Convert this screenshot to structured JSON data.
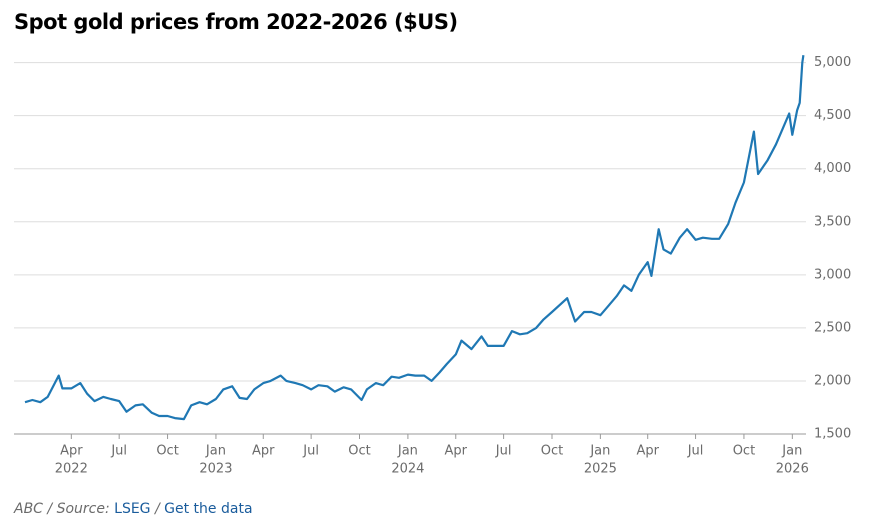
{
  "chart_data": {
    "type": "line",
    "title": "Spot gold prices from 2022-2026 ($US)",
    "x": [
      "2022-01-03",
      "2022-01-17",
      "2022-02-01",
      "2022-02-15",
      "2022-03-08",
      "2022-03-15",
      "2022-04-01",
      "2022-04-18",
      "2022-05-01",
      "2022-05-15",
      "2022-06-01",
      "2022-06-15",
      "2022-07-01",
      "2022-07-15",
      "2022-08-01",
      "2022-08-15",
      "2022-09-01",
      "2022-09-15",
      "2022-10-01",
      "2022-10-15",
      "2022-11-01",
      "2022-11-15",
      "2022-12-01",
      "2022-12-15",
      "2023-01-01",
      "2023-01-15",
      "2023-02-01",
      "2023-02-15",
      "2023-03-01",
      "2023-03-15",
      "2023-04-01",
      "2023-04-15",
      "2023-05-04",
      "2023-05-15",
      "2023-06-01",
      "2023-06-15",
      "2023-07-01",
      "2023-07-15",
      "2023-08-01",
      "2023-08-15",
      "2023-09-01",
      "2023-09-15",
      "2023-10-05",
      "2023-10-15",
      "2023-11-01",
      "2023-11-15",
      "2023-12-01",
      "2023-12-15",
      "2024-01-01",
      "2024-01-15",
      "2024-02-01",
      "2024-02-15",
      "2024-03-01",
      "2024-03-15",
      "2024-04-01",
      "2024-04-12",
      "2024-05-01",
      "2024-05-20",
      "2024-06-01",
      "2024-06-15",
      "2024-07-01",
      "2024-07-17",
      "2024-08-01",
      "2024-08-15",
      "2024-09-01",
      "2024-09-15",
      "2024-10-01",
      "2024-10-30",
      "2024-11-14",
      "2024-12-01",
      "2024-12-15",
      "2025-01-01",
      "2025-01-15",
      "2025-02-01",
      "2025-02-15",
      "2025-03-01",
      "2025-03-15",
      "2025-04-01",
      "2025-04-08",
      "2025-04-22",
      "2025-05-01",
      "2025-05-15",
      "2025-06-01",
      "2025-06-15",
      "2025-07-01",
      "2025-07-15",
      "2025-08-01",
      "2025-08-15",
      "2025-09-01",
      "2025-09-15",
      "2025-10-01",
      "2025-10-20",
      "2025-10-28",
      "2025-11-15",
      "2025-12-01",
      "2025-12-26",
      "2026-01-01",
      "2026-01-10",
      "2026-01-15",
      "2026-01-20",
      "2026-01-22"
    ],
    "values": [
      1800,
      1820,
      1800,
      1850,
      2050,
      1930,
      1930,
      1980,
      1880,
      1810,
      1850,
      1830,
      1810,
      1710,
      1770,
      1780,
      1700,
      1670,
      1670,
      1650,
      1640,
      1770,
      1800,
      1780,
      1830,
      1920,
      1950,
      1840,
      1830,
      1920,
      1980,
      2000,
      2050,
      2000,
      1980,
      1960,
      1920,
      1960,
      1950,
      1900,
      1940,
      1920,
      1820,
      1920,
      1980,
      1960,
      2040,
      2030,
      2060,
      2050,
      2050,
      2000,
      2080,
      2160,
      2250,
      2380,
      2300,
      2420,
      2330,
      2330,
      2330,
      2470,
      2440,
      2450,
      2500,
      2580,
      2650,
      2780,
      2560,
      2650,
      2650,
      2620,
      2700,
      2800,
      2900,
      2850,
      3000,
      3120,
      2990,
      3430,
      3240,
      3200,
      3350,
      3430,
      3330,
      3350,
      3340,
      3340,
      3480,
      3680,
      3870,
      4350,
      3950,
      4080,
      4230,
      4520,
      4320,
      4550,
      4620,
      5000,
      5070
    ],
    "color": "#1f78b4",
    "xlim": [
      "2021-12-13",
      "2026-01-27"
    ],
    "xticks": [
      {
        "value": "2022-04-01",
        "label": "Apr",
        "year": "2022"
      },
      {
        "value": "2022-07-01",
        "label": "Jul"
      },
      {
        "value": "2022-10-01",
        "label": "Oct"
      },
      {
        "value": "2023-01-01",
        "label": "Jan",
        "year": "2023"
      },
      {
        "value": "2023-04-01",
        "label": "Apr"
      },
      {
        "value": "2023-07-01",
        "label": "Jul"
      },
      {
        "value": "2023-10-01",
        "label": "Oct"
      },
      {
        "value": "2024-01-01",
        "label": "Jan",
        "year": "2024"
      },
      {
        "value": "2024-04-01",
        "label": "Apr"
      },
      {
        "value": "2024-07-01",
        "label": "Jul"
      },
      {
        "value": "2024-10-01",
        "label": "Oct"
      },
      {
        "value": "2025-01-01",
        "label": "Jan",
        "year": "2025"
      },
      {
        "value": "2025-04-01",
        "label": "Apr"
      },
      {
        "value": "2025-07-01",
        "label": "Jul"
      },
      {
        "value": "2025-10-01",
        "label": "Oct"
      },
      {
        "value": "2026-01-01",
        "label": "Jan",
        "year": "2026"
      }
    ],
    "ylim": [
      1500,
      5100
    ],
    "yticks": [
      {
        "value": 1500,
        "label": "1,500"
      },
      {
        "value": 2000,
        "label": "2,000"
      },
      {
        "value": 2500,
        "label": "2,500"
      },
      {
        "value": 3000,
        "label": "3,000"
      },
      {
        "value": 3500,
        "label": "3,500"
      },
      {
        "value": 4000,
        "label": "4,000"
      },
      {
        "value": 4500,
        "label": "4,500"
      },
      {
        "value": 5000,
        "label": "5,000"
      }
    ],
    "grid": true,
    "credit": "ABC / Source:",
    "source": "LSEG",
    "separator": "/",
    "link": "Get the data"
  }
}
